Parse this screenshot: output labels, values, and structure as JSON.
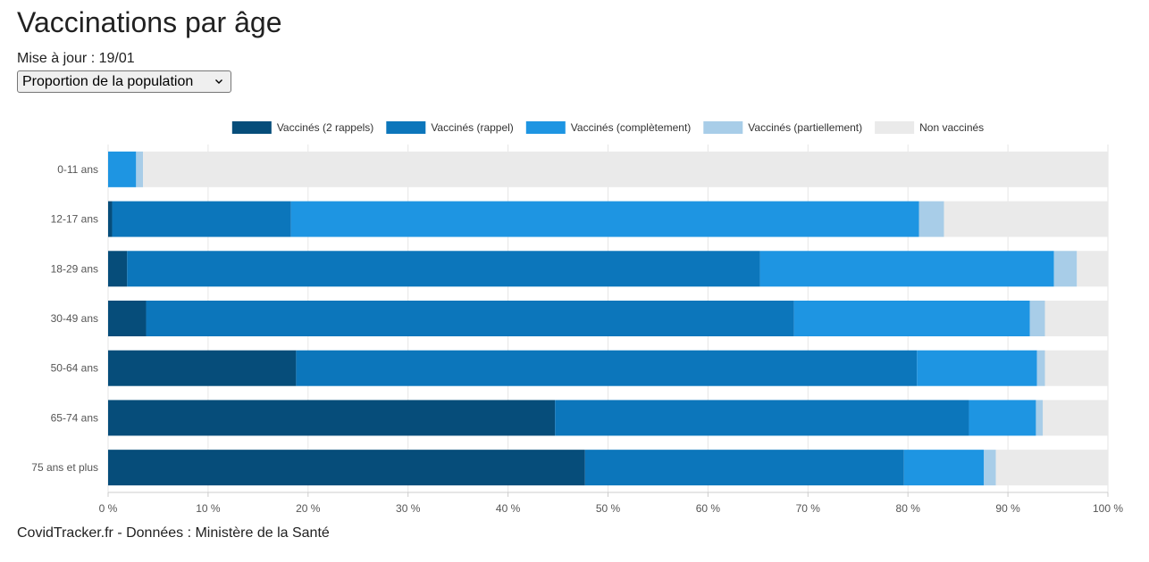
{
  "header": {
    "title": "Vaccinations par âge",
    "update_label": "Mise à jour : 19/01"
  },
  "selector": {
    "selected": "Proportion de la population",
    "icon": "chevron-down-icon"
  },
  "footer": {
    "text": "CovidTracker.fr - Données : Ministère de la Santé"
  },
  "chart_data": {
    "type": "bar",
    "orientation": "horizontal",
    "stacked": true,
    "legend_position": "top",
    "grid": true,
    "categories": [
      "0-11 ans",
      "12-17 ans",
      "18-29 ans",
      "30-49 ans",
      "50-64 ans",
      "65-74 ans",
      "75 ans et plus"
    ],
    "x_ticks": [
      "0 %",
      "10 %",
      "20 %",
      "30 %",
      "40 %",
      "50 %",
      "60 %",
      "70 %",
      "80 %",
      "90 %",
      "100 %"
    ],
    "xlim": [
      0,
      100
    ],
    "series": [
      {
        "name": "Vaccinés (2 rappels)",
        "color": "#064d7a",
        "values": [
          0,
          0.4,
          1.9,
          3.8,
          18.8,
          44.7,
          47.7
        ]
      },
      {
        "name": "Vaccinés (rappel)",
        "color": "#0c76bb",
        "values": [
          0,
          17.9,
          63.3,
          64.8,
          62.1,
          41.4,
          31.9
        ]
      },
      {
        "name": "Vaccinés (complètement)",
        "color": "#1e95e2",
        "values": [
          2.8,
          62.8,
          29.4,
          23.6,
          12.0,
          6.7,
          8.0
        ]
      },
      {
        "name": "Vaccinés (partiellement)",
        "color": "#a8cde8",
        "values": [
          0.7,
          2.5,
          2.3,
          1.5,
          0.8,
          0.7,
          1.2
        ]
      },
      {
        "name": "Non vaccinés",
        "color": "#eaeaea",
        "values": [
          96.5,
          16.4,
          3.1,
          6.3,
          6.3,
          6.5,
          11.2
        ]
      }
    ]
  }
}
